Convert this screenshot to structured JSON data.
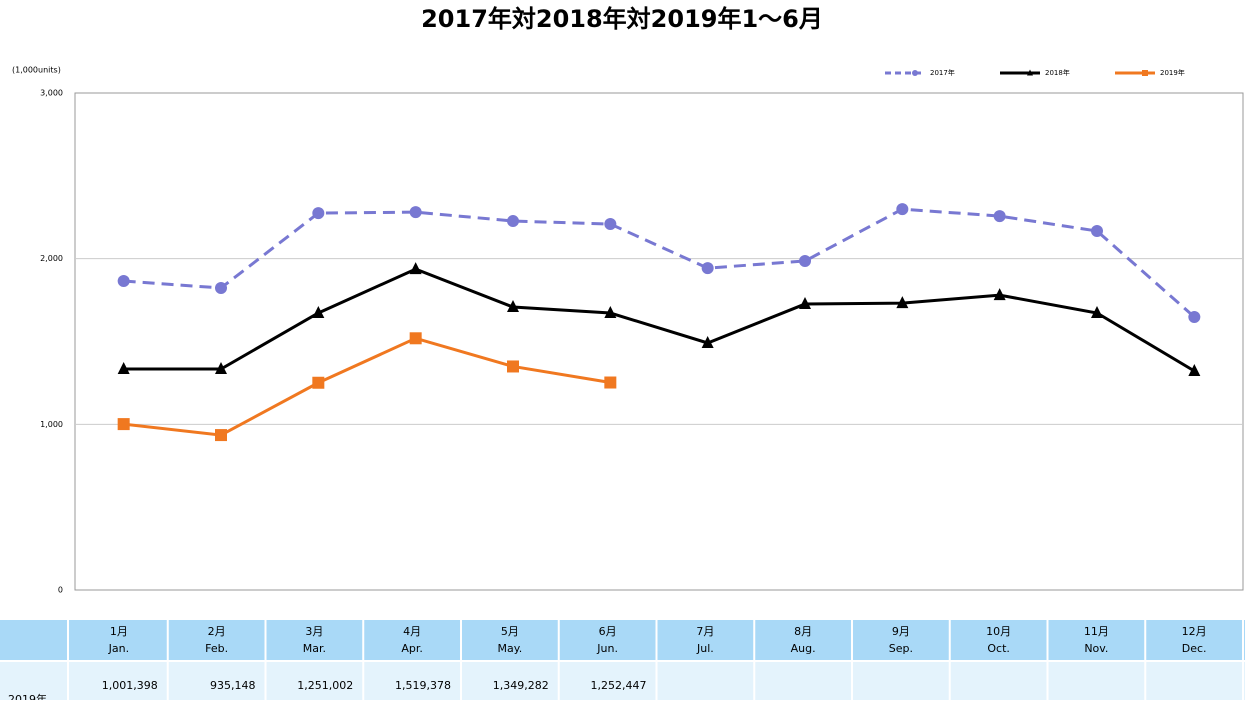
{
  "chart_data": {
    "type": "line",
    "title": "2017年対2018年対2019年1～6月",
    "y_unit_label": "(1,000units)",
    "categories": [
      "1月",
      "2月",
      "3月",
      "4月",
      "5月",
      "6月",
      "7月",
      "8月",
      "9月",
      "10月",
      "11月",
      "12月"
    ],
    "ylim": [
      0,
      3000
    ],
    "yticks": [
      {
        "value": 0,
        "label": "0"
      },
      {
        "value": 1000,
        "label": "1,000"
      },
      {
        "value": 2000,
        "label": "2,000"
      },
      {
        "value": 3000,
        "label": "3,000"
      }
    ],
    "grid": true,
    "legend": "top-right",
    "series": [
      {
        "name": "2017年",
        "color": "#7878d2",
        "marker": "circle",
        "dashed": true,
        "values": [
          1865,
          1823,
          2275,
          2281,
          2227,
          2209,
          1943,
          1986,
          2299,
          2257,
          2167,
          1648
        ]
      },
      {
        "name": "2018年",
        "color": "#000000",
        "marker": "triangle",
        "dashed": false,
        "values": [
          1334,
          1334,
          1672,
          1937,
          1708,
          1672,
          1491,
          1726,
          1732,
          1780,
          1672,
          1322
        ]
      },
      {
        "name": "2019年",
        "color": "#f07820",
        "marker": "square",
        "dashed": false,
        "values": [
          1001.398,
          935.148,
          1251.002,
          1519.378,
          1349.282,
          1252.447,
          null,
          null,
          null,
          null,
          null,
          null
        ]
      }
    ]
  },
  "table": {
    "header_en": [
      "Jan.",
      "Feb.",
      "Mar.",
      "Apr.",
      "May.",
      "Jun.",
      "Jul.",
      "Aug.",
      "Sep.",
      "Oct.",
      "Nov.",
      "Dec."
    ],
    "rows": [
      {
        "label": "2019年",
        "cells": [
          "1,001,398",
          "935,148",
          "1,251,002",
          "1,519,378",
          "1,349,282",
          "1,252,447",
          null,
          null,
          null,
          null,
          null,
          null
        ]
      }
    ]
  }
}
